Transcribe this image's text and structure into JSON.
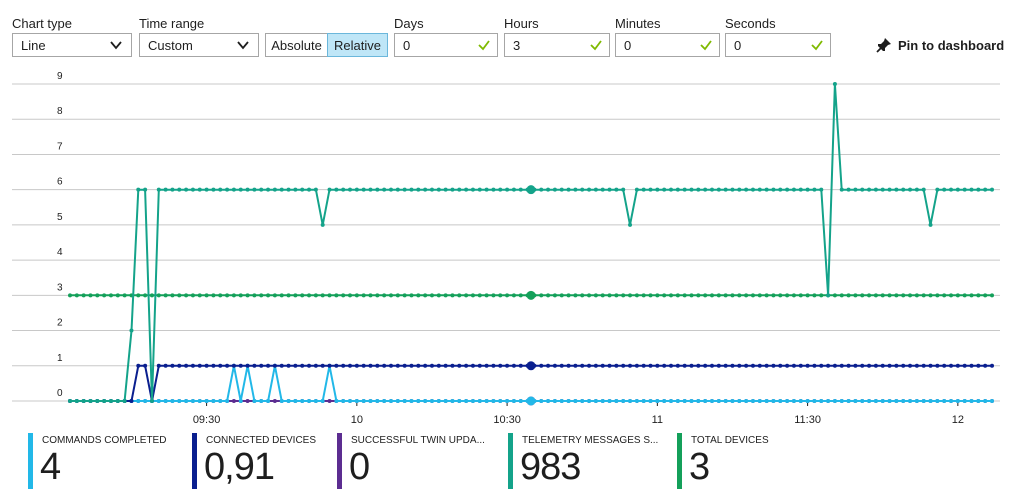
{
  "toolbar": {
    "chart_type_label": "Chart type",
    "chart_type_value": "Line",
    "time_range_label": "Time range",
    "time_range_value": "Custom",
    "absolute_label": "Absolute",
    "relative_label": "Relative",
    "days_label": "Days",
    "days_value": "0",
    "hours_label": "Hours",
    "hours_value": "3",
    "minutes_label": "Minutes",
    "minutes_value": "0",
    "seconds_label": "Seconds",
    "seconds_value": "0",
    "pin_label": "Pin to dashboard"
  },
  "colors": {
    "check": "#7fba00",
    "grid": "#c8c8c8",
    "axis": "#1e1e1e"
  },
  "chart_data": {
    "type": "line",
    "ylim": [
      0,
      9
    ],
    "y_ticks": [
      "0",
      "1",
      "2",
      "3",
      "4",
      "5",
      "6",
      "7",
      "8",
      "9"
    ],
    "x_range": [
      0,
      135
    ],
    "x_ticks": [
      {
        "label": "09:30",
        "x": 20
      },
      {
        "label": "10",
        "x": 42
      },
      {
        "label": "10:30",
        "x": 64
      },
      {
        "label": "11",
        "x": 86
      },
      {
        "label": "11:30",
        "x": 108
      },
      {
        "label": "12",
        "x": 130
      }
    ],
    "series": [
      {
        "name": "TELEMETRY MESSAGES SENT",
        "color": "#14a38a",
        "baseline": 6,
        "points": [
          [
            0,
            0
          ],
          [
            1,
            0
          ],
          [
            2,
            0
          ],
          [
            3,
            0
          ],
          [
            4,
            0
          ],
          [
            5,
            0
          ],
          [
            6,
            0
          ],
          [
            7,
            0
          ],
          [
            8,
            0
          ],
          [
            9,
            2
          ],
          [
            10,
            6
          ],
          [
            11,
            6
          ],
          [
            12,
            0
          ],
          [
            13,
            6
          ]
        ],
        "dips": [
          [
            37,
            5
          ],
          [
            82,
            5
          ],
          [
            111,
            3
          ],
          [
            112,
            9
          ],
          [
            126,
            5
          ]
        ],
        "end": 135
      },
      {
        "name": "TOTAL DEVICES",
        "color": "#14a05a",
        "baseline": 3,
        "points": [],
        "dips": [],
        "end": 135
      },
      {
        "name": "CONNECTED DEVICES",
        "color": "#0a1f8f",
        "baseline": 1,
        "points": [
          [
            0,
            0
          ],
          [
            1,
            0
          ],
          [
            2,
            0
          ],
          [
            3,
            0
          ],
          [
            4,
            0
          ],
          [
            5,
            0
          ],
          [
            6,
            0
          ],
          [
            7,
            0
          ],
          [
            8,
            0
          ],
          [
            9,
            0
          ],
          [
            10,
            1
          ],
          [
            11,
            1
          ],
          [
            12,
            0
          ],
          [
            13,
            1
          ]
        ],
        "dips": [],
        "end": 135
      },
      {
        "name": "COMMANDS COMPLETED",
        "color": "#22b8e8",
        "baseline": 0,
        "points": [],
        "dips": [
          [
            24,
            1
          ],
          [
            26,
            1
          ],
          [
            30,
            1
          ],
          [
            38,
            1
          ]
        ],
        "end": 135
      },
      {
        "name": "SUCCESSFUL TWIN UPDATES",
        "color": "#5c2d91",
        "baseline": 0,
        "points": [],
        "dips": [],
        "end": 135
      }
    ]
  },
  "legend": [
    {
      "name": "COMMANDS COMPLETED",
      "value": "4",
      "color": "#22b8e8"
    },
    {
      "name": "CONNECTED DEVICES",
      "value": "0,91",
      "color": "#0a1f8f"
    },
    {
      "name": "SUCCESSFUL TWIN UPDA...",
      "value": "0",
      "color": "#5c2d91"
    },
    {
      "name": "TELEMETRY MESSAGES S...",
      "value": "983",
      "color": "#14a38a"
    },
    {
      "name": "TOTAL DEVICES",
      "value": "3",
      "color": "#14a05a"
    }
  ]
}
